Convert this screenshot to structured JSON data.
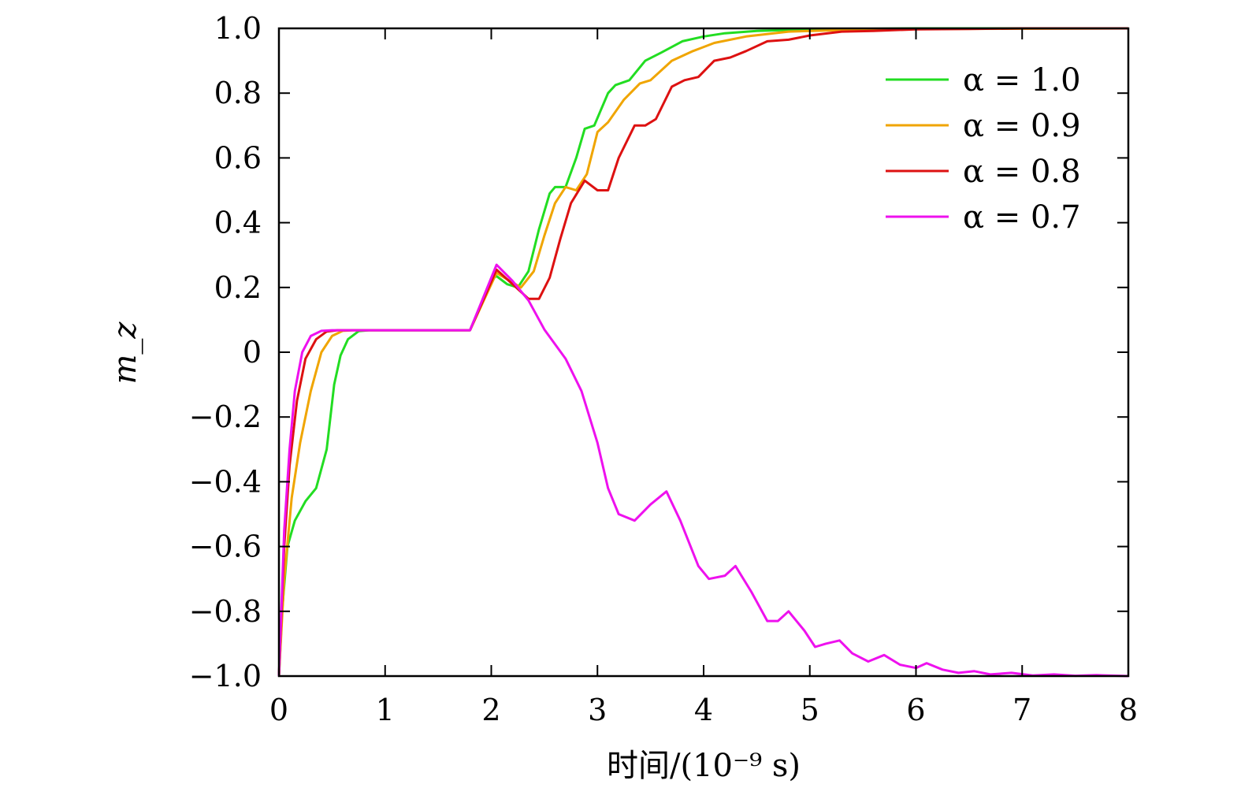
{
  "chart_data": {
    "type": "line",
    "title": "",
    "xlabel": "时间/(10⁻⁹ s)",
    "ylabel": "m_z",
    "xlim": [
      0,
      8
    ],
    "ylim": [
      -1.0,
      1.0
    ],
    "grid": false,
    "legend_position": "top-right",
    "xticks": [
      0,
      1,
      2,
      3,
      4,
      5,
      6,
      7,
      8
    ],
    "xtick_labels": [
      "0",
      "1",
      "2",
      "3",
      "4",
      "5",
      "6",
      "7",
      "8"
    ],
    "yticks": [
      1.0,
      0.8,
      0.6,
      0.4,
      0.2,
      0,
      -0.2,
      -0.4,
      -0.6,
      -0.8,
      -1.0
    ],
    "ytick_labels": [
      "1.0",
      "0.8",
      "0.6",
      "0.4",
      "0.2",
      "0",
      "−0.2",
      "−0.4",
      "−0.6",
      "−0.8",
      "−1.0"
    ],
    "series": [
      {
        "name": "α = 1.0",
        "color": "#22dd22",
        "points": [
          [
            0,
            -1.0
          ],
          [
            0.03,
            -0.8
          ],
          [
            0.08,
            -0.6
          ],
          [
            0.15,
            -0.52
          ],
          [
            0.25,
            -0.46
          ],
          [
            0.35,
            -0.42
          ],
          [
            0.45,
            -0.3
          ],
          [
            0.52,
            -0.1
          ],
          [
            0.58,
            -0.01
          ],
          [
            0.65,
            0.04
          ],
          [
            0.75,
            0.065
          ],
          [
            0.85,
            0.068
          ],
          [
            1.0,
            0.068
          ],
          [
            1.8,
            0.068
          ],
          [
            2.0,
            0.225
          ],
          [
            2.05,
            0.235
          ],
          [
            2.15,
            0.21
          ],
          [
            2.25,
            0.2
          ],
          [
            2.35,
            0.25
          ],
          [
            2.45,
            0.38
          ],
          [
            2.55,
            0.49
          ],
          [
            2.6,
            0.51
          ],
          [
            2.7,
            0.51
          ],
          [
            2.8,
            0.6
          ],
          [
            2.88,
            0.69
          ],
          [
            2.97,
            0.7
          ],
          [
            3.1,
            0.8
          ],
          [
            3.17,
            0.825
          ],
          [
            3.3,
            0.84
          ],
          [
            3.45,
            0.9
          ],
          [
            3.6,
            0.925
          ],
          [
            3.8,
            0.96
          ],
          [
            4.0,
            0.975
          ],
          [
            4.2,
            0.985
          ],
          [
            4.5,
            0.992
          ],
          [
            5.0,
            0.997
          ],
          [
            6.0,
            1.0
          ],
          [
            8.0,
            1.0
          ]
        ]
      },
      {
        "name": "α = 0.9",
        "color": "#f0a500",
        "points": [
          [
            0,
            -1.0
          ],
          [
            0.05,
            -0.7
          ],
          [
            0.12,
            -0.45
          ],
          [
            0.2,
            -0.28
          ],
          [
            0.3,
            -0.12
          ],
          [
            0.4,
            0.0
          ],
          [
            0.5,
            0.05
          ],
          [
            0.6,
            0.066
          ],
          [
            0.7,
            0.068
          ],
          [
            1.8,
            0.068
          ],
          [
            2.05,
            0.245
          ],
          [
            2.15,
            0.225
          ],
          [
            2.28,
            0.2
          ],
          [
            2.4,
            0.25
          ],
          [
            2.5,
            0.36
          ],
          [
            2.6,
            0.46
          ],
          [
            2.7,
            0.51
          ],
          [
            2.8,
            0.5
          ],
          [
            2.9,
            0.55
          ],
          [
            3.0,
            0.68
          ],
          [
            3.1,
            0.71
          ],
          [
            3.25,
            0.78
          ],
          [
            3.4,
            0.83
          ],
          [
            3.5,
            0.84
          ],
          [
            3.7,
            0.9
          ],
          [
            3.9,
            0.93
          ],
          [
            4.1,
            0.955
          ],
          [
            4.4,
            0.975
          ],
          [
            4.8,
            0.99
          ],
          [
            5.3,
            0.995
          ],
          [
            6.0,
            0.998
          ],
          [
            8.0,
            1.0
          ]
        ]
      },
      {
        "name": "α = 0.8",
        "color": "#dd1111",
        "points": [
          [
            0,
            -1.0
          ],
          [
            0.05,
            -0.6
          ],
          [
            0.1,
            -0.35
          ],
          [
            0.17,
            -0.15
          ],
          [
            0.25,
            -0.02
          ],
          [
            0.35,
            0.04
          ],
          [
            0.45,
            0.064
          ],
          [
            0.55,
            0.068
          ],
          [
            1.8,
            0.068
          ],
          [
            2.05,
            0.255
          ],
          [
            2.2,
            0.21
          ],
          [
            2.35,
            0.165
          ],
          [
            2.45,
            0.165
          ],
          [
            2.55,
            0.23
          ],
          [
            2.65,
            0.35
          ],
          [
            2.75,
            0.46
          ],
          [
            2.88,
            0.53
          ],
          [
            3.0,
            0.5
          ],
          [
            3.1,
            0.5
          ],
          [
            3.2,
            0.6
          ],
          [
            3.35,
            0.7
          ],
          [
            3.45,
            0.7
          ],
          [
            3.55,
            0.72
          ],
          [
            3.7,
            0.82
          ],
          [
            3.82,
            0.84
          ],
          [
            3.95,
            0.85
          ],
          [
            4.1,
            0.9
          ],
          [
            4.25,
            0.91
          ],
          [
            4.4,
            0.93
          ],
          [
            4.6,
            0.96
          ],
          [
            4.8,
            0.965
          ],
          [
            5.0,
            0.978
          ],
          [
            5.3,
            0.99
          ],
          [
            5.6,
            0.992
          ],
          [
            6.0,
            0.997
          ],
          [
            6.5,
            0.998
          ],
          [
            7.0,
            1.0
          ],
          [
            8.0,
            1.0
          ]
        ]
      },
      {
        "name": "α = 0.7",
        "color": "#ee11ee",
        "points": [
          [
            0,
            -1.0
          ],
          [
            0.05,
            -0.55
          ],
          [
            0.1,
            -0.3
          ],
          [
            0.15,
            -0.12
          ],
          [
            0.22,
            0.0
          ],
          [
            0.3,
            0.05
          ],
          [
            0.4,
            0.066
          ],
          [
            0.5,
            0.068
          ],
          [
            1.8,
            0.068
          ],
          [
            2.05,
            0.27
          ],
          [
            2.2,
            0.22
          ],
          [
            2.35,
            0.16
          ],
          [
            2.5,
            0.07
          ],
          [
            2.7,
            -0.02
          ],
          [
            2.85,
            -0.12
          ],
          [
            3.0,
            -0.28
          ],
          [
            3.1,
            -0.42
          ],
          [
            3.2,
            -0.5
          ],
          [
            3.35,
            -0.52
          ],
          [
            3.5,
            -0.47
          ],
          [
            3.65,
            -0.43
          ],
          [
            3.78,
            -0.52
          ],
          [
            3.95,
            -0.66
          ],
          [
            4.05,
            -0.7
          ],
          [
            4.2,
            -0.69
          ],
          [
            4.3,
            -0.66
          ],
          [
            4.45,
            -0.74
          ],
          [
            4.6,
            -0.83
          ],
          [
            4.7,
            -0.83
          ],
          [
            4.8,
            -0.8
          ],
          [
            4.95,
            -0.86
          ],
          [
            5.05,
            -0.91
          ],
          [
            5.15,
            -0.9
          ],
          [
            5.28,
            -0.89
          ],
          [
            5.4,
            -0.93
          ],
          [
            5.55,
            -0.955
          ],
          [
            5.7,
            -0.935
          ],
          [
            5.85,
            -0.965
          ],
          [
            6.0,
            -0.975
          ],
          [
            6.1,
            -0.96
          ],
          [
            6.25,
            -0.98
          ],
          [
            6.4,
            -0.99
          ],
          [
            6.55,
            -0.985
          ],
          [
            6.7,
            -0.995
          ],
          [
            6.9,
            -0.99
          ],
          [
            7.1,
            -0.998
          ],
          [
            7.3,
            -0.995
          ],
          [
            7.5,
            -0.999
          ],
          [
            7.7,
            -0.997
          ],
          [
            8.0,
            -1.0
          ]
        ]
      }
    ]
  }
}
